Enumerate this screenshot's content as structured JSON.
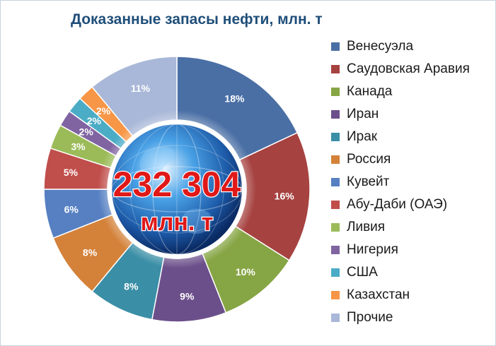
{
  "chart_data": {
    "type": "pie",
    "title": "Доказанные запасы нефти, млн. т",
    "center_value": "232 304",
    "center_unit": "млн. т",
    "legend_placement": "right",
    "slices": [
      {
        "name": "Венесуэла",
        "value": 18,
        "label": "18%",
        "color": "#4a6fa5"
      },
      {
        "name": "Саудовская Аравия",
        "value": 16,
        "label": "16%",
        "color": "#a64240"
      },
      {
        "name": "Канада",
        "value": 10,
        "label": "10%",
        "color": "#86a544"
      },
      {
        "name": "Иран",
        "value": 9,
        "label": "9%",
        "color": "#6b4f8a"
      },
      {
        "name": "Ирак",
        "value": 8,
        "label": "8%",
        "color": "#3a8ea6"
      },
      {
        "name": "Россия",
        "value": 8,
        "label": "8%",
        "color": "#d4823a"
      },
      {
        "name": "Кувейт",
        "value": 6,
        "label": "6%",
        "color": "#5680c2"
      },
      {
        "name": "Абу-Даби (ОАЭ)",
        "value": 5,
        "label": "5%",
        "color": "#c04e4b"
      },
      {
        "name": "Ливия",
        "value": 3,
        "label": "3%",
        "color": "#9bbb59"
      },
      {
        "name": "Нигерия",
        "value": 2,
        "label": "2%",
        "color": "#8064a2"
      },
      {
        "name": "США",
        "value": 2,
        "label": "2%",
        "color": "#4bacc6"
      },
      {
        "name": "Казахстан",
        "value": 2,
        "label": "2%",
        "color": "#f79646"
      },
      {
        "name": "Прочие",
        "value": 11,
        "label": "11%",
        "color": "#a9b8d8"
      }
    ]
  }
}
